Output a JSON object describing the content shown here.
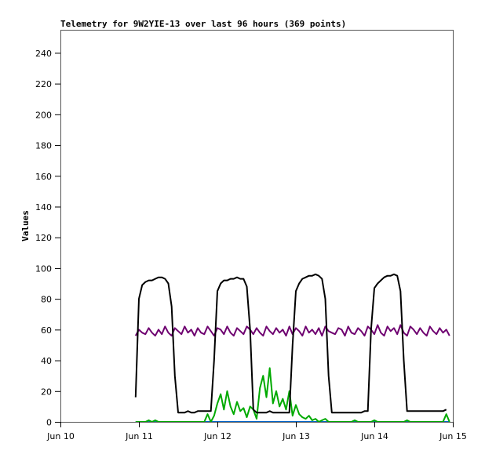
{
  "chart_data": {
    "type": "line",
    "title": "Telemetry for 9W2YIE-13 over last 96 hours (369 points)",
    "xlabel": "",
    "ylabel": "Values",
    "xlim": [
      "Jun 10 00:00",
      "Jun 15 00:00"
    ],
    "ylim": [
      0,
      255
    ],
    "x_ticks": [
      "Jun 10",
      "Jun 11",
      "Jun 12",
      "Jun 13",
      "Jun 14",
      "Jun 15"
    ],
    "y_ticks": [
      0,
      20,
      40,
      60,
      80,
      100,
      120,
      140,
      160,
      180,
      200,
      220,
      240
    ],
    "grid": false,
    "legend": "none",
    "x_start": "Jun 10 23:00",
    "x_step": "1 hour",
    "series": [
      {
        "color": "#000000",
        "values": [
          16,
          80,
          89,
          91,
          92,
          92,
          93,
          94,
          94,
          93,
          90,
          75,
          30,
          6,
          6,
          6,
          7,
          6,
          6,
          7,
          7,
          7,
          7,
          7,
          40,
          85,
          90,
          92,
          92,
          93,
          93,
          94,
          93,
          93,
          88,
          60,
          8,
          6,
          6,
          6,
          6,
          7,
          6,
          6,
          6,
          6,
          6,
          6,
          50,
          85,
          90,
          93,
          94,
          95,
          95,
          96,
          95,
          93,
          80,
          30,
          6,
          6,
          6,
          6,
          6,
          6,
          6,
          6,
          6,
          6,
          7,
          7,
          60,
          87,
          90,
          92,
          94,
          95,
          95,
          96,
          95,
          85,
          40,
          7,
          7,
          7,
          7,
          7,
          7,
          7,
          7,
          7,
          7,
          7,
          7,
          8
        ]
      },
      {
        "color": "#6e0070",
        "values": [
          56,
          60,
          58,
          57,
          61,
          58,
          56,
          60,
          57,
          62,
          58,
          56,
          61,
          59,
          57,
          62,
          58,
          60,
          56,
          61,
          58,
          57,
          62,
          59,
          56,
          61,
          60,
          57,
          62,
          58,
          56,
          61,
          59,
          57,
          62,
          60,
          57,
          61,
          58,
          56,
          62,
          59,
          57,
          61,
          58,
          60,
          56,
          62,
          57,
          61,
          59,
          56,
          62,
          58,
          60,
          57,
          61,
          56,
          62,
          59,
          58,
          57,
          61,
          60,
          56,
          62,
          58,
          57,
          61,
          59,
          56,
          62,
          60,
          57,
          63,
          58,
          56,
          62,
          59,
          61,
          57,
          63,
          58,
          56,
          62,
          60,
          57,
          61,
          58,
          56,
          62,
          59,
          57,
          61,
          58,
          60,
          56
        ]
      },
      {
        "color": "#00aa00",
        "values": [
          0,
          0,
          0,
          0,
          1,
          0,
          1,
          0,
          0,
          0,
          0,
          0,
          0,
          0,
          0,
          0,
          0,
          0,
          0,
          0,
          0,
          0,
          5,
          0,
          4,
          12,
          18,
          8,
          20,
          10,
          5,
          13,
          7,
          9,
          3,
          10,
          8,
          2,
          22,
          30,
          16,
          35,
          12,
          20,
          10,
          15,
          8,
          20,
          4,
          11,
          5,
          3,
          2,
          4,
          1,
          2,
          0,
          1,
          2,
          0,
          0,
          0,
          0,
          0,
          0,
          0,
          0,
          1,
          0,
          0,
          0,
          0,
          0,
          1,
          0,
          0,
          0,
          0,
          0,
          0,
          0,
          0,
          0,
          1,
          0,
          0,
          0,
          0,
          0,
          0,
          0,
          0,
          0,
          0,
          0,
          5,
          0
        ],
        "note_removed": ""
      },
      {
        "color": "#0066cc",
        "values": [
          0,
          0,
          0,
          0,
          0,
          0,
          0,
          0,
          0,
          0,
          0,
          0,
          0,
          0,
          0,
          0,
          0,
          0,
          0,
          0,
          0,
          0,
          0,
          0,
          0,
          0,
          0,
          0,
          0,
          0,
          0,
          0,
          0,
          0,
          0,
          0,
          0,
          0,
          0,
          0,
          0,
          0,
          0,
          0,
          0,
          0,
          0,
          0,
          0,
          0,
          0,
          0,
          0,
          0,
          0,
          0,
          0,
          0,
          0,
          0,
          0,
          0,
          0,
          0,
          0,
          0,
          0,
          0,
          0,
          0,
          0,
          0,
          0,
          0,
          0,
          0,
          0,
          0,
          0,
          0,
          0,
          0,
          0,
          0,
          0,
          0,
          0,
          0,
          0,
          0,
          0,
          0,
          0,
          0,
          0,
          0,
          0
        ]
      }
    ]
  }
}
